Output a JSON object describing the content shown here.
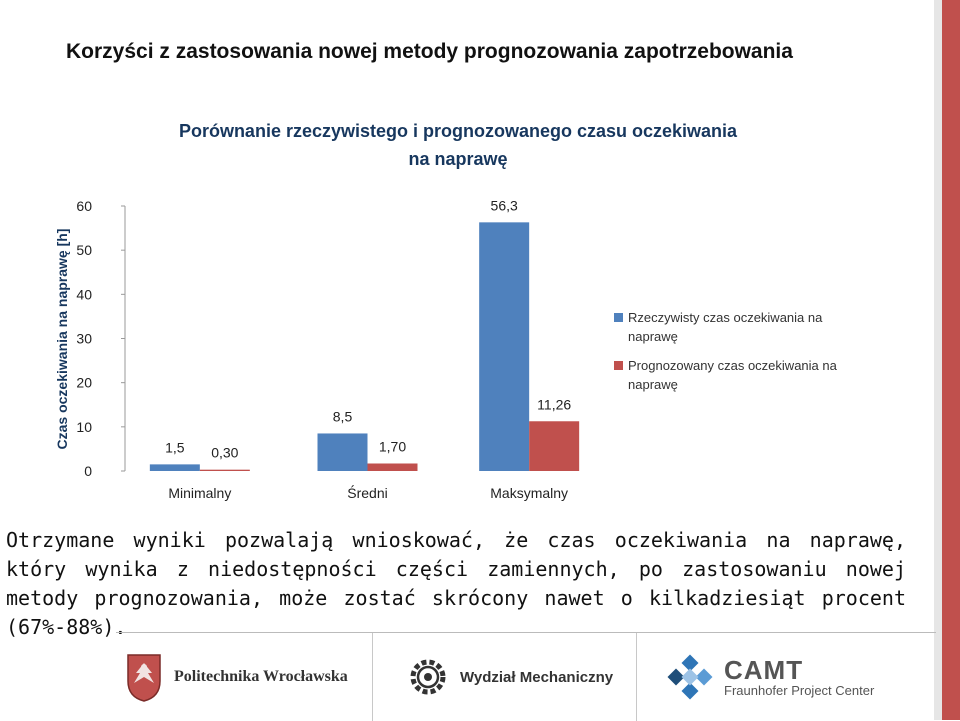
{
  "slide": {
    "title": "Korzyści z zastosowania nowej metody prognozowania zapotrzebowania",
    "caption": "Otrzymane wyniki pozwalają wnioskować, że czas oczekiwania na naprawę, który wynika z niedostępności części zamiennych, po zastosowaniu nowej metody prognozowania, może zostać skrócony nawet o kilkadziesiąt procent (67%-88%).",
    "accent_color": "#c0504d"
  },
  "chart_data": {
    "type": "bar",
    "title_lines": [
      "Porównanie rzeczywistego i prognozowanego czasu oczekiwania",
      "na naprawę"
    ],
    "ylabel": "Czas oczekiwania na naprawę [h]",
    "xlabel": "",
    "ylim": [
      0,
      60
    ],
    "yticks": [
      0,
      10,
      20,
      30,
      40,
      50,
      60
    ],
    "categories": [
      "Minimalny",
      "Średni",
      "Maksymalny"
    ],
    "series": [
      {
        "name": "Rzeczywisty czas oczekiwania na naprawę",
        "values": [
          1.5,
          8.5,
          56.3
        ],
        "labels": [
          "1,5",
          "8,5",
          "56,3"
        ],
        "color": "#4f81bd"
      },
      {
        "name": "Prognozowany czas oczekiwania na naprawę",
        "values": [
          0.3,
          1.7,
          11.26
        ],
        "labels": [
          "0,30",
          "1,70",
          "11,26"
        ],
        "color": "#c0504d"
      }
    ],
    "grid": false,
    "legend_position": "right"
  },
  "footer": {
    "logos": [
      {
        "name": "Politechnika Wrocławska",
        "icon": "eagle-crest-icon"
      },
      {
        "name": "Wydział Mechaniczny",
        "icon": "gear-icon"
      },
      {
        "name": "CAMT",
        "subtitle": "Fraunhofer Project Center",
        "icon": "cube-cluster-icon"
      }
    ]
  }
}
